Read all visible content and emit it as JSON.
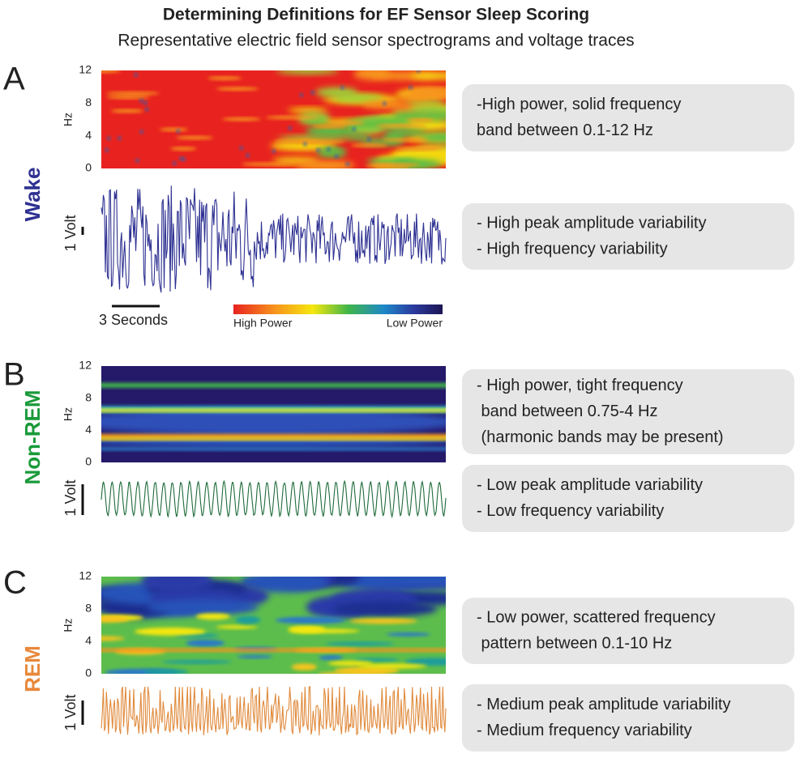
{
  "title": "Determining Definitions for EF Sensor Sleep Scoring",
  "subtitle": "Representative electric field sensor spectrograms and voltage traces",
  "legend": {
    "time_scale": "3 Seconds",
    "high": "High Power",
    "low": "Low Power"
  },
  "panels": [
    {
      "letter": "A",
      "state": "Wake",
      "state_color": "#2e3192",
      "trace_color": "#2e3192",
      "y_axis_label": "Hz",
      "y_ticks": [
        12,
        8,
        4,
        0
      ],
      "voltage_label": "1 Volt",
      "spectrogram_notes": [
        "-High power, solid frequency",
        "band between 0.1-12 Hz"
      ],
      "trace_notes": [
        "- High peak amplitude variability",
        "- High frequency variability"
      ]
    },
    {
      "letter": "B",
      "state": "Non-REM",
      "state_color": "#1a9a3a",
      "trace_color": "#1e6b3a",
      "y_axis_label": "Hz",
      "y_ticks": [
        12,
        8,
        4,
        0
      ],
      "voltage_label": "1 Volt",
      "spectrogram_notes": [
        "- High power, tight frequency",
        " band between 0.75-4 Hz",
        " (harmonic bands may be present)"
      ],
      "trace_notes": [
        "- Low peak amplitude variability",
        "- Low frequency variability"
      ]
    },
    {
      "letter": "C",
      "state": "REM",
      "state_color": "#e8883a",
      "trace_color": "#e08a3c",
      "y_axis_label": "Hz",
      "y_ticks": [
        12,
        8,
        4,
        0
      ],
      "voltage_label": "1 Volt",
      "spectrogram_notes": [
        "- Low power, scattered frequency",
        " pattern between 0.1-10 Hz"
      ],
      "trace_notes": [
        "- Medium peak amplitude variability",
        "- Medium frequency variability"
      ]
    }
  ]
}
